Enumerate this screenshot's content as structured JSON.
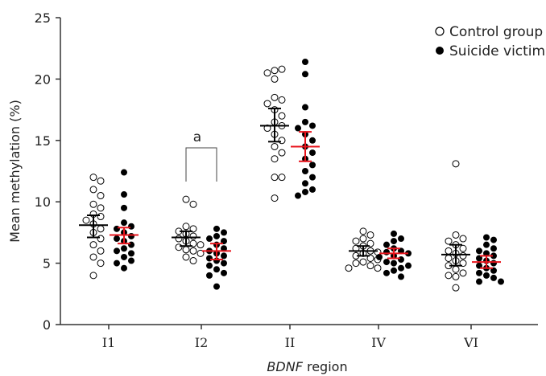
{
  "chart_data": {
    "type": "scatter",
    "xlabel_italic": "BDNF",
    "xlabel_rest": " region",
    "ylabel": "Mean methylation (%)",
    "ylim": [
      0,
      25
    ],
    "yticks": [
      0,
      5,
      10,
      15,
      20,
      25
    ],
    "categories": [
      "I1",
      "I2",
      "II",
      "IV",
      "VI"
    ],
    "legend_position": "top-right",
    "grid": false,
    "significance": [
      {
        "category": "I2",
        "label": "a"
      }
    ],
    "series": [
      {
        "name": "Control group",
        "marker": "open-circle",
        "summary_color": "#000000",
        "means": [
          8.1,
          7.1,
          16.2,
          6.0,
          5.7
        ],
        "ci_low": [
          7.1,
          6.4,
          14.9,
          5.6,
          4.8
        ],
        "ci_high": [
          8.9,
          7.6,
          17.6,
          6.4,
          6.5
        ],
        "points": [
          [
            12.0,
            11.7,
            11.0,
            10.5,
            9.8,
            9.5,
            9.0,
            8.8,
            8.5,
            8.2,
            7.8,
            7.5,
            7.0,
            6.5,
            6.0,
            5.5,
            5.0,
            4.0
          ],
          [
            10.2,
            9.8,
            8.0,
            7.8,
            7.6,
            7.4,
            7.2,
            7.0,
            6.8,
            6.6,
            6.5,
            6.3,
            6.1,
            6.0,
            5.8,
            5.5,
            5.2
          ],
          [
            20.7,
            20.8,
            20.0,
            20.5,
            18.5,
            18.3,
            18.0,
            17.5,
            17.0,
            16.5,
            16.2,
            16.0,
            15.5,
            15.0,
            14.5,
            14.0,
            13.5,
            12.0,
            12.0,
            10.3
          ],
          [
            7.6,
            7.3,
            7.0,
            6.8,
            6.6,
            6.4,
            6.2,
            6.0,
            5.9,
            5.8,
            5.6,
            5.4,
            5.3,
            5.1,
            5.0,
            4.8,
            4.6,
            4.6
          ],
          [
            13.1,
            7.3,
            7.0,
            6.8,
            6.5,
            6.2,
            6.0,
            5.8,
            5.6,
            5.4,
            5.2,
            5.0,
            4.8,
            4.5,
            4.2,
            4.0,
            3.9,
            3.0
          ]
        ]
      },
      {
        "name": "Suicide victims",
        "marker": "filled-circle",
        "summary_color": "#e8141c",
        "means": [
          7.3,
          6.0,
          14.5,
          5.8,
          5.1
        ],
        "ci_low": [
          6.6,
          5.3,
          13.3,
          5.4,
          4.6
        ],
        "ci_high": [
          7.9,
          6.6,
          15.7,
          6.2,
          5.6
        ],
        "points": [
          [
            12.4,
            10.6,
            9.5,
            8.3,
            8.0,
            7.8,
            7.5,
            7.2,
            7.0,
            6.8,
            6.5,
            6.2,
            6.0,
            5.8,
            5.5,
            5.2,
            5.0,
            4.6
          ],
          [
            7.8,
            7.5,
            7.2,
            7.0,
            6.8,
            6.5,
            6.2,
            6.0,
            5.8,
            5.6,
            5.4,
            5.2,
            5.0,
            4.8,
            4.5,
            4.2,
            4.0,
            3.1
          ],
          [
            21.4,
            20.4,
            17.7,
            16.5,
            16.2,
            16.0,
            15.5,
            15.0,
            14.5,
            14.0,
            13.5,
            13.0,
            12.5,
            12.0,
            11.5,
            11.0,
            10.8,
            10.5
          ],
          [
            7.4,
            7.0,
            6.8,
            6.5,
            6.2,
            6.0,
            5.9,
            5.8,
            5.6,
            5.5,
            5.3,
            5.1,
            5.0,
            4.8,
            4.6,
            4.4,
            4.2,
            3.9
          ],
          [
            7.1,
            6.9,
            6.5,
            6.2,
            6.0,
            5.8,
            5.6,
            5.4,
            5.2,
            5.0,
            4.8,
            4.6,
            4.4,
            4.2,
            4.0,
            3.8,
            3.5,
            3.5
          ]
        ]
      }
    ]
  }
}
